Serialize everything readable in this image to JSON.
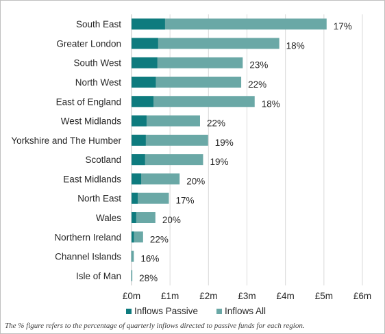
{
  "chart_data": {
    "type": "bar",
    "orientation": "horizontal",
    "stacked": "overlay",
    "categories": [
      "South East",
      "Greater London",
      "South West",
      "North West",
      "East of England",
      "West Midlands",
      "Yorkshire and The Humber",
      "Scotland",
      "East Midlands",
      "North East",
      "Wales",
      "Northern Ireland",
      "Channel Islands",
      "Isle of Man"
    ],
    "series": [
      {
        "name": "Inflows Passive",
        "values": [
          0.87,
          0.69,
          0.67,
          0.63,
          0.57,
          0.39,
          0.37,
          0.35,
          0.25,
          0.16,
          0.12,
          0.06,
          0.01,
          0.005
        ],
        "color": "#0e7b7e"
      },
      {
        "name": "Inflows All",
        "values": [
          5.07,
          3.84,
          2.89,
          2.85,
          3.2,
          1.78,
          1.99,
          1.86,
          1.25,
          0.97,
          0.62,
          0.3,
          0.06,
          0.02
        ],
        "color": "#6aa8a6"
      }
    ],
    "data_labels": [
      "17%",
      "18%",
      "23%",
      "22%",
      "18%",
      "22%",
      "19%",
      "19%",
      "20%",
      "17%",
      "20%",
      "22%",
      "16%",
      "28%"
    ],
    "xticks": [
      "£0m",
      "£1m",
      "£2m",
      "£3m",
      "£4m",
      "£5m",
      "£6m"
    ],
    "xlim": [
      0,
      6
    ],
    "grid": true,
    "legend": "bottom",
    "footnote": "The % figure refers to the percentage of quarterly inflows directed to passive funds for each region."
  }
}
